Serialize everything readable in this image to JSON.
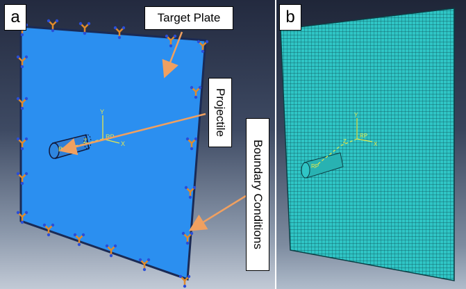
{
  "panels": {
    "a": {
      "label": "a"
    },
    "b": {
      "label": "b"
    }
  },
  "callouts": {
    "target_plate": "Target Plate",
    "projectile": "Projectile",
    "boundary_conditions": "Boundary Conditions"
  },
  "axes_a": {
    "x": "X",
    "y": "Y",
    "z": "Z",
    "rp_plate": "RP",
    "rp_projectile": "RP"
  },
  "axes_b": {
    "x": "X",
    "y": "Y",
    "z": "Z",
    "rp_plate": "RP",
    "rp_projectile": "RP"
  },
  "colors": {
    "plate_fill": "#2b8ff0",
    "mesh_fill": "#2fc5c5",
    "mesh_lines": "#0b4f55",
    "arrow": "#f0a060",
    "axis": "#e8e84a",
    "bc_marker": "#e08a2c",
    "bc_tip": "#2a4ed8"
  },
  "icons": [
    "boundary-condition-marker",
    "coordinate-triad"
  ]
}
